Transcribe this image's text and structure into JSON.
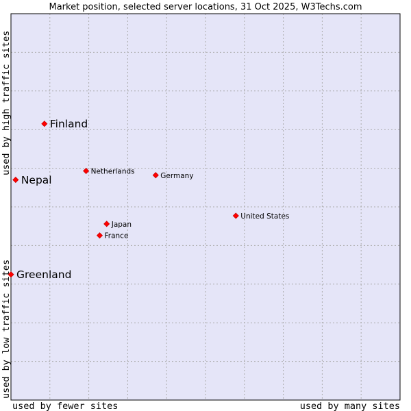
{
  "chart_data": {
    "type": "scatter",
    "title": "Market position, selected server locations, 31 Oct 2025, W3Techs.com",
    "xlabel_left": "used by fewer sites",
    "xlabel_right": "used by many sites",
    "ylabel_bottom": "used by low traffic sites",
    "ylabel_top": "used by high traffic sites",
    "xlim": [
      0,
      100
    ],
    "ylim": [
      0,
      100
    ],
    "grid": true,
    "colors": {
      "plot_background": "#e5e5f8",
      "grid": "#aaaaaa",
      "border": "#000000",
      "marker": "#ff0000",
      "marker_edge": "#cc0000"
    },
    "points": [
      {
        "label": "Finland",
        "x": 8.6,
        "y": 71.5,
        "emphasis": "large"
      },
      {
        "label": "Nepal",
        "x": 1.2,
        "y": 57.0,
        "emphasis": "large"
      },
      {
        "label": "Greenland",
        "x": 0.0,
        "y": 32.5,
        "emphasis": "large"
      },
      {
        "label": "Netherlands",
        "x": 19.3,
        "y": 59.3,
        "emphasis": "normal"
      },
      {
        "label": "Germany",
        "x": 37.2,
        "y": 58.2,
        "emphasis": "normal"
      },
      {
        "label": "United States",
        "x": 57.8,
        "y": 47.7,
        "emphasis": "normal"
      },
      {
        "label": "Japan",
        "x": 24.6,
        "y": 45.6,
        "emphasis": "normal"
      },
      {
        "label": "France",
        "x": 22.8,
        "y": 42.6,
        "emphasis": "normal"
      }
    ]
  }
}
